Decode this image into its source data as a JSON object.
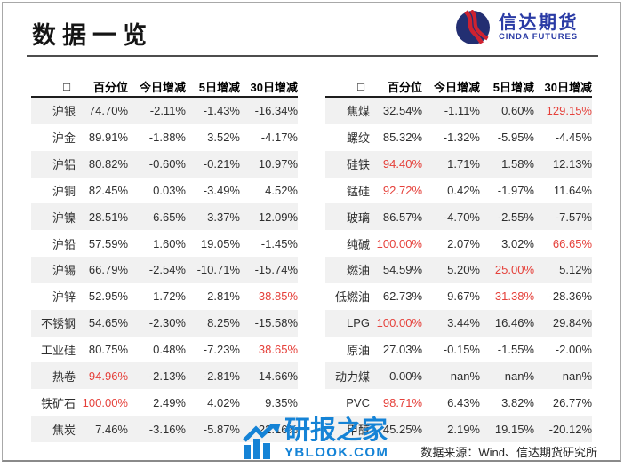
{
  "header": {
    "title": "数据一览",
    "logo": {
      "cn": "信达期货",
      "en": "CINDA FUTURES"
    }
  },
  "tables": {
    "columns": [
      "□",
      "百分位",
      "今日增减",
      "5日增减",
      "30日增减"
    ],
    "left": {
      "rows": [
        {
          "name": "沪银",
          "values": [
            "74.70%",
            "-2.11%",
            "-1.43%",
            "-16.34%"
          ],
          "red": []
        },
        {
          "name": "沪金",
          "values": [
            "89.91%",
            "-1.88%",
            "3.52%",
            "-4.17%"
          ],
          "red": []
        },
        {
          "name": "沪铝",
          "values": [
            "80.82%",
            "-0.60%",
            "-0.21%",
            "10.97%"
          ],
          "red": []
        },
        {
          "name": "沪铜",
          "values": [
            "82.45%",
            "0.03%",
            "-3.49%",
            "4.52%"
          ],
          "red": []
        },
        {
          "name": "沪镍",
          "values": [
            "28.51%",
            "6.65%",
            "3.37%",
            "12.09%"
          ],
          "red": []
        },
        {
          "name": "沪铅",
          "values": [
            "57.59%",
            "1.60%",
            "19.05%",
            "-1.45%"
          ],
          "red": []
        },
        {
          "name": "沪锡",
          "values": [
            "66.79%",
            "-2.54%",
            "-10.71%",
            "-15.74%"
          ],
          "red": []
        },
        {
          "name": "沪锌",
          "values": [
            "52.95%",
            "1.72%",
            "2.81%",
            "38.85%"
          ],
          "red": [
            3
          ]
        },
        {
          "name": "不锈钢",
          "values": [
            "54.65%",
            "-2.30%",
            "8.25%",
            "-15.58%"
          ],
          "red": []
        },
        {
          "name": "工业硅",
          "values": [
            "80.75%",
            "0.48%",
            "-7.23%",
            "38.65%"
          ],
          "red": [
            3
          ]
        },
        {
          "name": "热卷",
          "values": [
            "94.96%",
            "-2.13%",
            "-2.81%",
            "14.66%"
          ],
          "red": [
            0
          ]
        },
        {
          "name": "铁矿石",
          "values": [
            "100.00%",
            "2.49%",
            "4.02%",
            "9.35%"
          ],
          "red": [
            0
          ]
        },
        {
          "name": "焦炭",
          "values": [
            "7.46%",
            "-3.16%",
            "-5.87%",
            "22.16%"
          ],
          "red": []
        }
      ]
    },
    "right": {
      "rows": [
        {
          "name": "焦煤",
          "values": [
            "32.54%",
            "-1.11%",
            "0.60%",
            "129.15%"
          ],
          "red": [
            3
          ]
        },
        {
          "name": "螺纹",
          "values": [
            "85.32%",
            "-1.32%",
            "-5.95%",
            "-4.45%"
          ],
          "red": []
        },
        {
          "name": "硅铁",
          "values": [
            "94.40%",
            "1.71%",
            "1.58%",
            "12.13%"
          ],
          "red": [
            0
          ]
        },
        {
          "name": "锰硅",
          "values": [
            "92.72%",
            "0.42%",
            "-1.97%",
            "11.64%"
          ],
          "red": [
            0
          ]
        },
        {
          "name": "玻璃",
          "values": [
            "86.57%",
            "-4.70%",
            "-2.55%",
            "-7.57%"
          ],
          "red": []
        },
        {
          "name": "纯碱",
          "values": [
            "100.00%",
            "2.07%",
            "3.02%",
            "66.65%"
          ],
          "red": [
            0,
            3
          ]
        },
        {
          "name": "燃油",
          "values": [
            "54.59%",
            "5.20%",
            "25.00%",
            "5.12%"
          ],
          "red": [
            2
          ]
        },
        {
          "name": "低燃油",
          "values": [
            "62.73%",
            "9.67%",
            "31.38%",
            "-28.36%"
          ],
          "red": [
            2
          ]
        },
        {
          "name": "LPG",
          "values": [
            "100.00%",
            "3.44%",
            "16.46%",
            "29.84%"
          ],
          "red": [
            0
          ]
        },
        {
          "name": "原油",
          "values": [
            "27.03%",
            "-0.15%",
            "-1.55%",
            "-2.00%"
          ],
          "red": []
        },
        {
          "name": "动力煤",
          "values": [
            "0.00%",
            "nan%",
            "nan%",
            "nan%"
          ],
          "red": []
        },
        {
          "name": "PVC",
          "values": [
            "98.71%",
            "6.43%",
            "3.82%",
            "26.77%"
          ],
          "red": [
            0
          ]
        },
        {
          "name": "甲醇",
          "values": [
            "45.25%",
            "2.19%",
            "19.15%",
            "-20.12%"
          ],
          "red": []
        }
      ]
    }
  },
  "watermark": {
    "cn": "研报之家",
    "en": "YBLOOK.COM"
  },
  "footer": {
    "source": "数据来源：Wind、信达期货研究所"
  },
  "colors": {
    "highlight_red": "#e5403a",
    "row_alt_gray": "#f1f1f1",
    "watermark_blue": "#1583d6",
    "logo_navy": "#232f72",
    "logo_red": "#cf2230",
    "logo_blue": "#2a3ba5"
  }
}
